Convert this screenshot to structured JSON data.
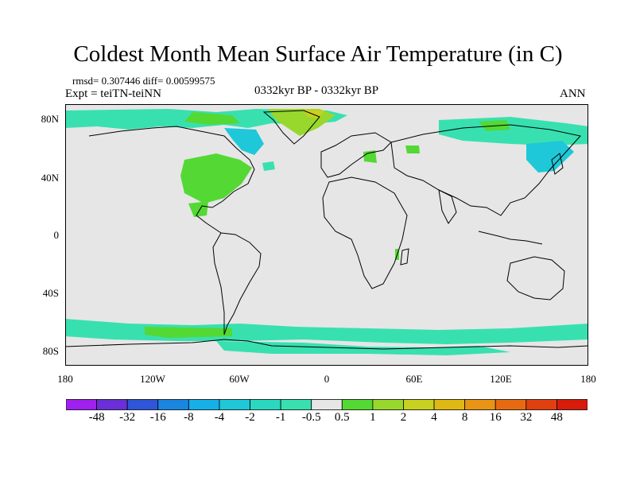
{
  "title": "Coldest Month Mean Surface Air Temperature (in C)",
  "stats": "rmsd= 0.307446 diff= 0.00599575",
  "experiment": "Expt = teiTN-teiNN",
  "period": "0332kyr BP - 0332kyr BP",
  "season": "ANN",
  "lat_labels": [
    "80N",
    "40N",
    "0",
    "40S",
    "80S"
  ],
  "lon_labels": [
    "180",
    "120W",
    "60W",
    "0",
    "60E",
    "120E",
    "180"
  ],
  "colorbar": {
    "labels": [
      "-48",
      "-32",
      "-16",
      "-8",
      "-4",
      "-2",
      "-1",
      "-0.5",
      "0.5",
      "1",
      "2",
      "4",
      "8",
      "16",
      "32",
      "48"
    ],
    "colors": [
      "#a020f0",
      "#6a2fd6",
      "#2f55d8",
      "#1a86e0",
      "#16b0e8",
      "#1ec8d8",
      "#2ad8c0",
      "#38e0b0",
      "#e6e6e6",
      "#54d834",
      "#98d82c",
      "#c8d020",
      "#e0b814",
      "#e89414",
      "#e86a10",
      "#e04010",
      "#d81c0c"
    ]
  },
  "colors": {
    "ocean_land_background": "#e6e6e6",
    "coastline": "#000000"
  }
}
